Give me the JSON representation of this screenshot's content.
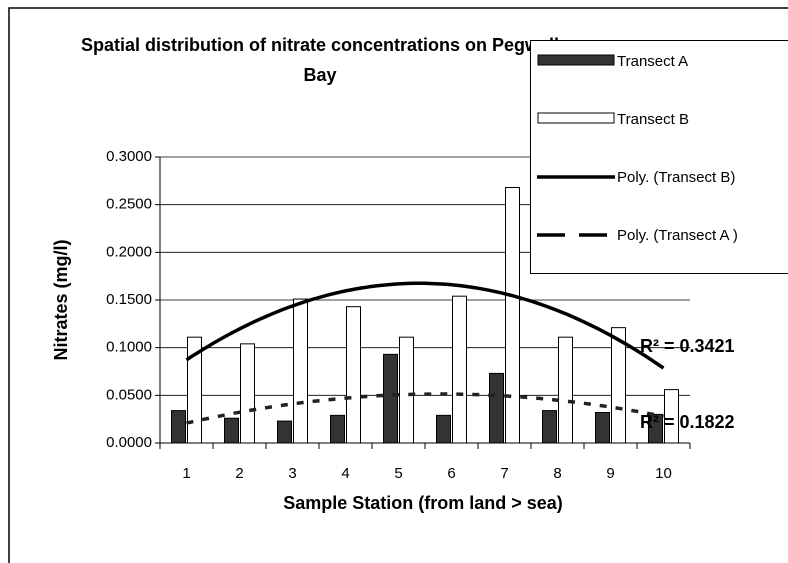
{
  "chart_data": {
    "type": "bar",
    "title": "Spatial distribution of nitrate concentrations on Pegwell Bay",
    "x_label": "Sample Station (from land > sea)",
    "y_label": "Nitrates (mg/l)",
    "categories": [
      "1",
      "2",
      "3",
      "4",
      "5",
      "6",
      "7",
      "8",
      "9",
      "10"
    ],
    "series": [
      {
        "name": "Transect A",
        "color": "#333333",
        "values": [
          0.034,
          0.026,
          0.023,
          0.029,
          0.093,
          0.029,
          0.073,
          0.034,
          0.032,
          0.03
        ]
      },
      {
        "name": "Transect B",
        "color": "#ffffff",
        "values": [
          0.111,
          0.104,
          0.151,
          0.143,
          0.111,
          0.154,
          0.268,
          0.111,
          0.121,
          0.056
        ]
      }
    ],
    "trendlines": [
      {
        "name": "Poly. (Transect B)",
        "series": 1,
        "order": 2,
        "style": "solid",
        "color": "#000000",
        "r2_label": "R² = 0.3421"
      },
      {
        "name": "Poly. (Transect A )",
        "series": 0,
        "order": 2,
        "style": "dashed",
        "color": "#000000",
        "r2_label": "R² = 0.1822"
      }
    ],
    "ylim": [
      0,
      0.3
    ],
    "yticks": [
      {
        "value": 0,
        "label": "0.0000"
      },
      {
        "value": 0.05,
        "label": "0.0500"
      },
      {
        "value": 0.1,
        "label": "0.1000"
      },
      {
        "value": 0.15,
        "label": "0.1500"
      },
      {
        "value": 0.2,
        "label": "0.2000"
      },
      {
        "value": 0.25,
        "label": "0.2500"
      },
      {
        "value": 0.3,
        "label": "0.3000"
      }
    ],
    "grid": true
  }
}
